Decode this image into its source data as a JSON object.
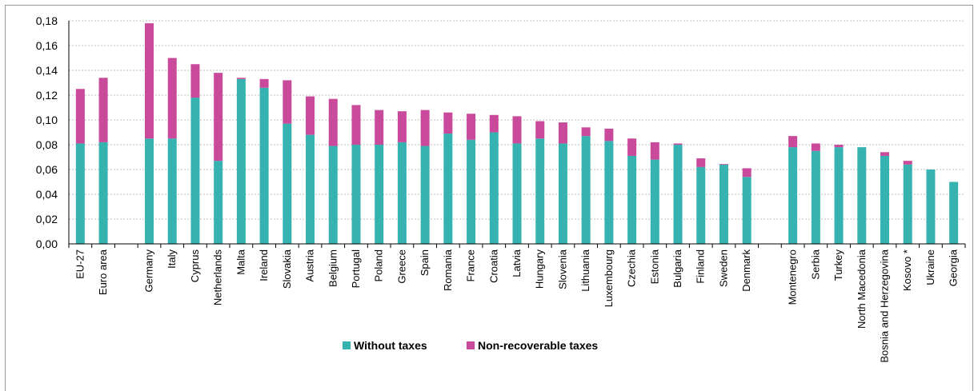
{
  "chart_data": {
    "type": "bar",
    "stacked": true,
    "title": "",
    "xlabel": "",
    "ylabel": "",
    "ylim": [
      0,
      0.18
    ],
    "yticks": [
      "0,00",
      "0,02",
      "0,04",
      "0,06",
      "0,08",
      "0,10",
      "0,12",
      "0,14",
      "0,16",
      "0,18"
    ],
    "grid": true,
    "legend_position": "bottom",
    "categories": [
      "EU-27",
      "Euro area",
      "",
      "Germany",
      "Italy",
      "Cyprus",
      "Netherlands",
      "Malta",
      "Ireland",
      "Slovakia",
      "Austria",
      "Belgium",
      "Portugal",
      "Poland",
      "Greece",
      "Spain",
      "Romania",
      "France",
      "Croatia",
      "Latvia",
      "Hungary",
      "Slovenia",
      "Lithuania",
      "Luxembourg",
      "Czechia",
      "Estonia",
      "Bulgaria",
      "Finland",
      "Sweden",
      "Denmark",
      "",
      "Montenegro",
      "Serbia",
      "Turkey",
      "North Macedonia",
      "Bosnia and Herzegovina",
      "Kosovo *",
      "Ukraine",
      "Georgia"
    ],
    "series": [
      {
        "name": "Without taxes",
        "color": "#36b3b0",
        "values": [
          0.081,
          0.082,
          null,
          0.085,
          0.085,
          0.118,
          0.067,
          0.133,
          0.126,
          0.097,
          0.088,
          0.079,
          0.08,
          0.08,
          0.082,
          0.079,
          0.089,
          0.084,
          0.09,
          0.081,
          0.085,
          0.081,
          0.087,
          0.083,
          0.071,
          0.068,
          0.08,
          0.062,
          0.064,
          0.054,
          null,
          0.078,
          0.075,
          0.078,
          0.078,
          0.071,
          0.064,
          0.06,
          0.05
        ]
      },
      {
        "name": "Non-recoverable taxes",
        "color": "#c94a9a",
        "values": [
          0.044,
          0.052,
          null,
          0.093,
          0.065,
          0.027,
          0.071,
          0.001,
          0.007,
          0.035,
          0.031,
          0.038,
          0.032,
          0.028,
          0.025,
          0.029,
          0.017,
          0.021,
          0.014,
          0.022,
          0.014,
          0.017,
          0.007,
          0.01,
          0.014,
          0.014,
          0.001,
          0.007,
          0.0005,
          0.007,
          null,
          0.009,
          0.006,
          0.002,
          0.0,
          0.003,
          0.003,
          0.0,
          0.0
        ]
      }
    ]
  },
  "legend": {
    "without_taxes": "Without taxes",
    "non_recoverable": "Non-recoverable taxes"
  }
}
